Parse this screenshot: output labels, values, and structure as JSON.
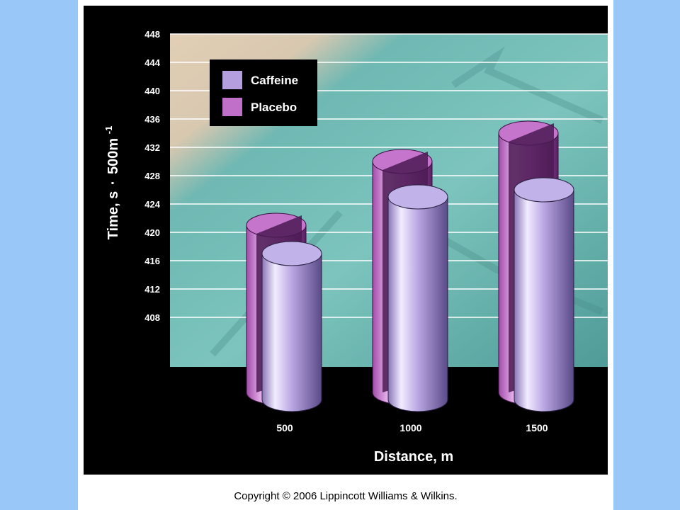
{
  "chart_data": {
    "type": "bar",
    "categories": [
      "500",
      "1000",
      "1500"
    ],
    "series": [
      {
        "name": "Caffeine",
        "values": [
          417,
          425,
          426
        ],
        "color": "#b49ee0"
      },
      {
        "name": "Placebo",
        "values": [
          421,
          430,
          434
        ],
        "color": "#c070c8"
      }
    ],
    "title": "",
    "xlabel": "Distance, m",
    "ylabel_main": "Time, s",
    "ylabel_dot": "·",
    "ylabel_unit": "500m",
    "ylabel_exp": "-1",
    "ylim": [
      408,
      448
    ],
    "yticks": [
      408,
      412,
      416,
      420,
      424,
      428,
      432,
      436,
      440,
      444,
      448
    ],
    "grid": true,
    "legend_position": "top-left"
  },
  "copyright": "Copyright © 2006 Lippincott Williams & Wilkins."
}
